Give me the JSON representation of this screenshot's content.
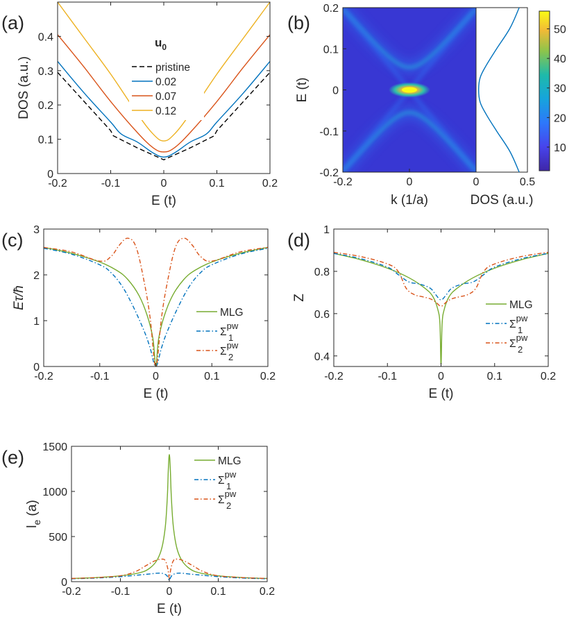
{
  "panels": {
    "a": {
      "label": "(a)"
    },
    "b": {
      "label": "(b)"
    },
    "c": {
      "label": "(c)"
    },
    "d": {
      "label": "(d)"
    },
    "e": {
      "label": "(e)"
    }
  },
  "chart_data": [
    {
      "id": "a",
      "type": "line",
      "xlabel": "E (t)",
      "ylabel": "DOS (a.u.)",
      "xlim": [
        -0.2,
        0.2
      ],
      "ylim": [
        0,
        0.5
      ],
      "xticks": [
        -0.2,
        -0.1,
        0,
        0.1,
        0.2
      ],
      "yticks": [
        0,
        0.1,
        0.2,
        0.3,
        0.4
      ],
      "legend_title": "u",
      "legend_title_sub": "0",
      "legend_position": "top-center",
      "series": [
        {
          "name": "pristine",
          "color": "#000000",
          "dash": "dashed",
          "x": [
            -0.2,
            -0.15,
            -0.1,
            -0.095,
            -0.05,
            0,
            0.05,
            0.095,
            0.1,
            0.15,
            0.2
          ],
          "y": [
            0.295,
            0.21,
            0.125,
            0.11,
            0.075,
            0.04,
            0.075,
            0.11,
            0.125,
            0.21,
            0.295
          ]
        },
        {
          "name": "0.02",
          "color": "#0072BD",
          "dash": "solid",
          "x": [
            -0.2,
            -0.15,
            -0.1,
            -0.08,
            -0.05,
            -0.02,
            0,
            0.02,
            0.05,
            0.08,
            0.1,
            0.15,
            0.2
          ],
          "y": [
            0.327,
            0.235,
            0.15,
            0.115,
            0.092,
            0.06,
            0.048,
            0.06,
            0.092,
            0.115,
            0.15,
            0.235,
            0.327
          ]
        },
        {
          "name": "0.07",
          "color": "#D95319",
          "dash": "solid",
          "x": [
            -0.2,
            -0.15,
            -0.1,
            -0.05,
            -0.02,
            0,
            0.02,
            0.05,
            0.1,
            0.15,
            0.2
          ],
          "y": [
            0.405,
            0.31,
            0.21,
            0.12,
            0.075,
            0.063,
            0.075,
            0.12,
            0.21,
            0.31,
            0.405
          ]
        },
        {
          "name": "0.12",
          "color": "#EDB120",
          "dash": "solid",
          "x": [
            -0.2,
            -0.15,
            -0.1,
            -0.05,
            -0.02,
            0,
            0.02,
            0.05,
            0.1,
            0.15,
            0.2
          ],
          "y": [
            0.5,
            0.395,
            0.29,
            0.175,
            0.115,
            0.095,
            0.115,
            0.175,
            0.29,
            0.395,
            0.5
          ]
        }
      ]
    },
    {
      "id": "b",
      "type": "heatmap",
      "xlabel": "k (1/a)",
      "ylabel": "E (t)",
      "xlim": [
        -0.2,
        0.2
      ],
      "ylim": [
        -0.2,
        0.2
      ],
      "xticks": [
        -0.2,
        0
      ],
      "yticks": [
        -0.2,
        -0.1,
        0,
        0.1,
        0.2
      ],
      "colorbar": {
        "min": 2,
        "max": 56,
        "ticks": [
          10,
          20,
          30,
          40,
          50
        ]
      },
      "side_plot": {
        "xlabel": "DOS (a.u.)",
        "xlim": [
          0,
          0.5
        ],
        "xticks": [
          0,
          0.5
        ],
        "color": "#0072BD",
        "E": [
          -0.2,
          -0.15,
          -0.1,
          -0.06,
          -0.03,
          0,
          0.03,
          0.06,
          0.1,
          0.15,
          0.2
        ],
        "DOS": [
          0.42,
          0.33,
          0.2,
          0.1,
          0.04,
          0.025,
          0.04,
          0.1,
          0.2,
          0.33,
          0.42
        ]
      }
    },
    {
      "id": "c",
      "type": "line",
      "xlabel": "E (t)",
      "ylabel": "Eτ/ħ",
      "xlim": [
        -0.2,
        0.2
      ],
      "ylim": [
        0,
        3
      ],
      "xticks": [
        -0.2,
        -0.1,
        0,
        0.1,
        0.2
      ],
      "yticks": [
        0,
        1,
        2,
        3
      ],
      "legend_position": "bottom-right",
      "series": [
        {
          "name": "MLG",
          "color": "#77AC30",
          "dash": "solid",
          "x": [
            -0.2,
            -0.15,
            -0.1,
            -0.07,
            -0.05,
            -0.03,
            -0.015,
            -0.005,
            0,
            0.005,
            0.015,
            0.03,
            0.05,
            0.07,
            0.1,
            0.15,
            0.2
          ],
          "y": [
            2.6,
            2.47,
            2.28,
            2.1,
            1.9,
            1.55,
            1.1,
            0.6,
            0.0,
            0.6,
            1.1,
            1.55,
            1.9,
            2.1,
            2.28,
            2.47,
            2.6
          ]
        },
        {
          "name": "Σ",
          "sub": "1",
          "sup": "pw",
          "color": "#0072BD",
          "dash": "dashdot",
          "x": [
            -0.2,
            -0.15,
            -0.1,
            -0.08,
            -0.06,
            -0.04,
            -0.02,
            -0.01,
            0,
            0.01,
            0.02,
            0.04,
            0.06,
            0.08,
            0.1,
            0.15,
            0.2
          ],
          "y": [
            2.58,
            2.45,
            2.22,
            2.05,
            1.75,
            1.3,
            0.75,
            0.4,
            0.0,
            0.4,
            0.75,
            1.3,
            1.75,
            2.05,
            2.22,
            2.45,
            2.58
          ]
        },
        {
          "name": "Σ",
          "sub": "2",
          "sup": "pw",
          "color": "#D95319",
          "dash": "dashdot",
          "x": [
            -0.2,
            -0.15,
            -0.1,
            -0.08,
            -0.065,
            -0.05,
            -0.035,
            -0.02,
            -0.01,
            0,
            0.01,
            0.02,
            0.035,
            0.05,
            0.065,
            0.08,
            0.1,
            0.15,
            0.2
          ],
          "y": [
            2.6,
            2.5,
            2.3,
            2.4,
            2.65,
            2.8,
            2.6,
            1.8,
            1.05,
            0.0,
            1.05,
            1.8,
            2.6,
            2.8,
            2.65,
            2.4,
            2.3,
            2.5,
            2.6
          ]
        }
      ]
    },
    {
      "id": "d",
      "type": "line",
      "xlabel": "E (t)",
      "ylabel": "Z",
      "xlim": [
        -0.2,
        0.2
      ],
      "ylim": [
        0.35,
        1
      ],
      "xticks": [
        -0.2,
        -0.1,
        0,
        0.1,
        0.2
      ],
      "yticks": [
        0.4,
        0.6,
        0.8,
        1
      ],
      "legend_position": "bottom-right",
      "series": [
        {
          "name": "MLG",
          "color": "#77AC30",
          "dash": "solid",
          "x": [
            -0.2,
            -0.15,
            -0.1,
            -0.06,
            -0.03,
            -0.015,
            -0.006,
            -0.002,
            0,
            0.002,
            0.006,
            0.015,
            0.03,
            0.06,
            0.1,
            0.15,
            0.2
          ],
          "y": [
            0.885,
            0.855,
            0.815,
            0.77,
            0.72,
            0.68,
            0.62,
            0.55,
            0.36,
            0.55,
            0.62,
            0.68,
            0.72,
            0.77,
            0.815,
            0.855,
            0.885
          ]
        },
        {
          "name": "Σ",
          "sub": "1",
          "sup": "pw",
          "color": "#0072BD",
          "dash": "dashdot",
          "x": [
            -0.2,
            -0.15,
            -0.1,
            -0.08,
            -0.06,
            -0.04,
            -0.02,
            -0.01,
            0,
            0.01,
            0.02,
            0.04,
            0.06,
            0.08,
            0.1,
            0.15,
            0.2
          ],
          "y": [
            0.885,
            0.86,
            0.82,
            0.785,
            0.75,
            0.74,
            0.72,
            0.69,
            0.665,
            0.69,
            0.72,
            0.74,
            0.75,
            0.785,
            0.82,
            0.86,
            0.885
          ]
        },
        {
          "name": "Σ",
          "sub": "2",
          "sup": "pw",
          "color": "#D95319",
          "dash": "dashdot",
          "x": [
            -0.2,
            -0.15,
            -0.1,
            -0.08,
            -0.065,
            -0.05,
            -0.035,
            -0.02,
            -0.01,
            0,
            0.01,
            0.02,
            0.035,
            0.05,
            0.065,
            0.08,
            0.1,
            0.15,
            0.2
          ],
          "y": [
            0.89,
            0.87,
            0.835,
            0.8,
            0.72,
            0.69,
            0.68,
            0.67,
            0.655,
            0.635,
            0.655,
            0.67,
            0.68,
            0.69,
            0.72,
            0.8,
            0.835,
            0.87,
            0.89
          ]
        }
      ]
    },
    {
      "id": "e",
      "type": "line",
      "xlabel": "E (t)",
      "ylabel": "l",
      "ylabel_sub": "e",
      "ylabel_suffix": " (a)",
      "xlim": [
        -0.2,
        0.2
      ],
      "ylim": [
        0,
        1500
      ],
      "xticks": [
        -0.2,
        -0.1,
        0,
        0.1,
        0.2
      ],
      "yticks": [
        0,
        500,
        1000,
        1500
      ],
      "legend_position": "top-right",
      "series": [
        {
          "name": "MLG",
          "color": "#77AC30",
          "dash": "solid",
          "x": [
            -0.2,
            -0.15,
            -0.1,
            -0.06,
            -0.04,
            -0.025,
            -0.015,
            -0.008,
            -0.004,
            -0.002,
            0,
            0.002,
            0.004,
            0.008,
            0.015,
            0.025,
            0.04,
            0.06,
            0.1,
            0.15,
            0.2
          ],
          "y": [
            35,
            45,
            65,
            100,
            150,
            240,
            380,
            620,
            950,
            1250,
            1410,
            1250,
            950,
            620,
            380,
            240,
            150,
            100,
            65,
            45,
            35
          ]
        },
        {
          "name": "Σ",
          "sub": "1",
          "sup": "pw",
          "color": "#0072BD",
          "dash": "dashdot",
          "x": [
            -0.2,
            -0.15,
            -0.1,
            -0.06,
            -0.04,
            -0.02,
            -0.008,
            -0.003,
            0,
            0.003,
            0.008,
            0.02,
            0.04,
            0.06,
            0.1,
            0.15,
            0.2
          ],
          "y": [
            32,
            40,
            55,
            75,
            85,
            95,
            80,
            50,
            15,
            50,
            80,
            95,
            85,
            75,
            55,
            40,
            32
          ]
        },
        {
          "name": "Σ",
          "sub": "2",
          "sup": "pw",
          "color": "#D95319",
          "dash": "dashdot",
          "x": [
            -0.2,
            -0.15,
            -0.1,
            -0.07,
            -0.05,
            -0.03,
            -0.015,
            -0.008,
            -0.003,
            0,
            0.003,
            0.008,
            0.015,
            0.03,
            0.05,
            0.07,
            0.1,
            0.15,
            0.2
          ],
          "y": [
            35,
            45,
            65,
            110,
            170,
            230,
            250,
            230,
            140,
            40,
            140,
            230,
            250,
            230,
            170,
            110,
            65,
            45,
            35
          ]
        }
      ]
    }
  ]
}
